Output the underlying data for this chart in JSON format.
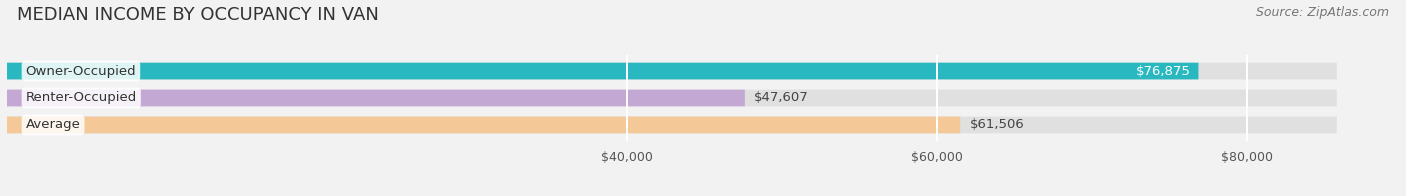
{
  "title": "MEDIAN INCOME BY OCCUPANCY IN VAN",
  "source": "Source: ZipAtlas.com",
  "categories": [
    "Owner-Occupied",
    "Renter-Occupied",
    "Average"
  ],
  "values": [
    76875,
    47607,
    61506
  ],
  "bar_colors": [
    "#29b8c0",
    "#c4a8d4",
    "#f5c897"
  ],
  "bar_labels": [
    "$76,875",
    "$47,607",
    "$61,506"
  ],
  "label_colors": [
    "#ffffff",
    "#555555",
    "#555555"
  ],
  "xlim": [
    0,
    88000
  ],
  "xticks": [
    40000,
    60000,
    80000
  ],
  "xtick_labels": [
    "$40,000",
    "$60,000",
    "$80,000"
  ],
  "background_color": "#f2f2f2",
  "bar_bg_color": "#e0e0e0",
  "title_fontsize": 13,
  "source_fontsize": 9,
  "label_fontsize": 9.5,
  "cat_fontsize": 9.5,
  "tick_fontsize": 9
}
